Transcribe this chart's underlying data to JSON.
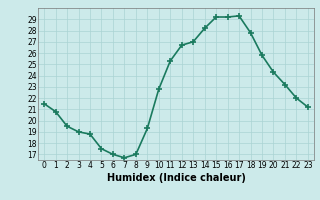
{
  "x": [
    0,
    1,
    2,
    3,
    4,
    5,
    6,
    7,
    8,
    9,
    10,
    11,
    12,
    13,
    14,
    15,
    16,
    17,
    18,
    19,
    20,
    21,
    22,
    23
  ],
  "y": [
    21.5,
    20.8,
    19.5,
    19.0,
    18.8,
    17.5,
    17.0,
    16.7,
    17.0,
    19.3,
    22.8,
    25.3,
    26.7,
    27.0,
    28.2,
    29.2,
    29.2,
    29.3,
    27.8,
    25.8,
    24.3,
    23.2,
    22.0,
    21.2
  ],
  "line_color": "#1a7a5e",
  "bg_color": "#cceaea",
  "grid_color": "#aad4d4",
  "xlabel": "Humidex (Indice chaleur)",
  "ylabel_ticks": [
    17,
    18,
    19,
    20,
    21,
    22,
    23,
    24,
    25,
    26,
    27,
    28,
    29
  ],
  "ylim": [
    16.5,
    30.0
  ],
  "xlim": [
    -0.5,
    23.5
  ],
  "marker": "+",
  "linewidth": 1.2,
  "markersize": 4,
  "markeredgewidth": 1.2,
  "tick_fontsize": 5.5,
  "xlabel_fontsize": 7
}
